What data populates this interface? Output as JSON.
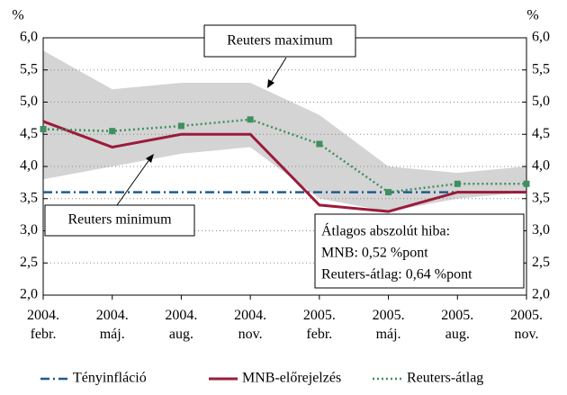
{
  "chart_data": {
    "type": "line",
    "ylabel": "%",
    "y2label": "%",
    "categories": [
      "2004.\nfebr.",
      "2004.\nmáj.",
      "2004.\naug.",
      "2004.\nnov.",
      "2005.\nfebr.",
      "2005.\nmáj.",
      "2005.\naug.",
      "2005.\nnov."
    ],
    "ylim": [
      2,
      6
    ],
    "yticks": [
      {
        "value": 2,
        "label": "2,0"
      },
      {
        "value": 2.5,
        "label": "2,5"
      },
      {
        "value": 3,
        "label": "3,0"
      },
      {
        "value": 3.5,
        "label": "3,5"
      },
      {
        "value": 4,
        "label": "4,0"
      },
      {
        "value": 4.5,
        "label": "4,5"
      },
      {
        "value": 5,
        "label": "5,0"
      },
      {
        "value": 5.5,
        "label": "5,5"
      },
      {
        "value": 6,
        "label": "6,0"
      }
    ],
    "y2lim": [
      2,
      6
    ],
    "y2ticks": [
      {
        "value": 2,
        "label": "2,0"
      },
      {
        "value": 2.5,
        "label": "2,5"
      },
      {
        "value": 3,
        "label": "3,0"
      },
      {
        "value": 3.5,
        "label": "3,5"
      },
      {
        "value": 4,
        "label": "4,0"
      },
      {
        "value": 4.5,
        "label": "4,5"
      },
      {
        "value": 5,
        "label": "5,0"
      },
      {
        "value": 5.5,
        "label": "5,5"
      },
      {
        "value": 6,
        "label": "6,0"
      }
    ],
    "grid": true,
    "band": {
      "color": "#d4d4d4",
      "upper": [
        5.8,
        5.2,
        5.3,
        5.3,
        4.8,
        4.0,
        3.9,
        4.0
      ],
      "lower": [
        3.8,
        4.0,
        4.2,
        4.3,
        3.5,
        3.3,
        3.5,
        3.6
      ]
    },
    "series": [
      {
        "name": "Tényinfláció",
        "color": "#1f5c8c",
        "style": "dashdot",
        "values": [
          3.6,
          3.6,
          3.6,
          3.6,
          3.6,
          3.6,
          3.6,
          3.6
        ]
      },
      {
        "name": "MNB-előrejelzés",
        "color": "#9b1b3a",
        "style": "solid",
        "values": [
          4.7,
          4.3,
          4.5,
          4.5,
          3.4,
          3.3,
          3.6,
          3.6
        ]
      },
      {
        "name": "Reuters-átlag",
        "color": "#3f8f5f",
        "style": "dotted",
        "marker": "square",
        "values": [
          4.58,
          4.55,
          4.63,
          4.73,
          4.35,
          3.6,
          3.73,
          3.73
        ]
      }
    ],
    "annotations": [
      "Reuters maximum",
      "Reuters minimum"
    ],
    "error_box": [
      "Átlagos abszolút hiba:",
      "MNB: 0,52 %pont",
      "Reuters-átlag: 0,64 %pont"
    ]
  }
}
